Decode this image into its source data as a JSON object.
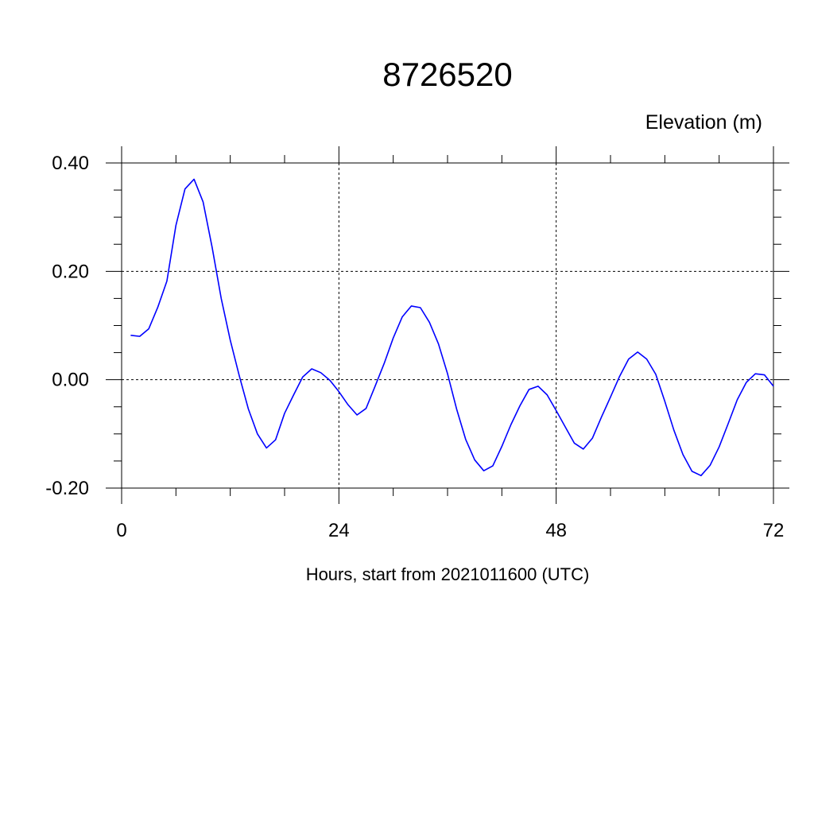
{
  "chart_data": {
    "type": "line",
    "title": "8726520",
    "ylabel": "Elevation (m)",
    "xlabel": "Hours, start from 2021011600 (UTC)",
    "xlim": [
      0,
      72
    ],
    "ylim": [
      -0.2,
      0.4
    ],
    "x_ticks": [
      0,
      24,
      48,
      72
    ],
    "x_tick_labels": [
      "0",
      "24",
      "48",
      "72"
    ],
    "y_ticks": [
      -0.2,
      0,
      0.2,
      0.4
    ],
    "y_tick_labels": [
      "-0.20",
      "0.00",
      "0.20",
      "0.40"
    ],
    "grid": true,
    "line_color": "#0000ff",
    "series": [
      {
        "x": [
          1,
          2,
          3,
          4,
          5,
          6,
          7,
          8,
          9,
          10,
          11,
          12,
          13,
          14,
          15,
          16,
          17,
          18,
          19,
          20,
          21,
          22,
          23,
          24,
          25,
          26,
          27,
          28,
          29,
          30,
          31,
          32,
          33,
          34,
          35,
          36,
          37,
          38,
          39,
          40,
          41,
          42,
          43,
          44,
          45,
          46,
          47,
          48,
          49,
          50,
          51,
          52,
          53,
          54,
          55,
          56,
          57,
          58,
          59,
          60,
          61,
          62,
          63,
          64,
          65,
          66,
          67,
          68,
          69,
          70,
          71,
          72
        ],
        "values": [
          0.082,
          0.08,
          0.094,
          0.134,
          0.182,
          0.285,
          0.352,
          0.37,
          0.328,
          0.244,
          0.15,
          0.073,
          0.007,
          -0.054,
          -0.1,
          -0.126,
          -0.111,
          -0.062,
          -0.028,
          0.005,
          0.02,
          0.013,
          -0.001,
          -0.022,
          -0.046,
          -0.065,
          -0.053,
          -0.012,
          0.03,
          0.077,
          0.116,
          0.136,
          0.133,
          0.106,
          0.066,
          0.011,
          -0.054,
          -0.11,
          -0.148,
          -0.168,
          -0.159,
          -0.123,
          -0.083,
          -0.048,
          -0.018,
          -0.012,
          -0.028,
          -0.057,
          -0.087,
          -0.117,
          -0.128,
          -0.108,
          -0.069,
          -0.032,
          0.006,
          0.038,
          0.051,
          0.038,
          0.01,
          -0.04,
          -0.093,
          -0.138,
          -0.169,
          -0.177,
          -0.158,
          -0.124,
          -0.081,
          -0.037,
          -0.005,
          0.011,
          0.009,
          -0.012
        ]
      }
    ]
  }
}
